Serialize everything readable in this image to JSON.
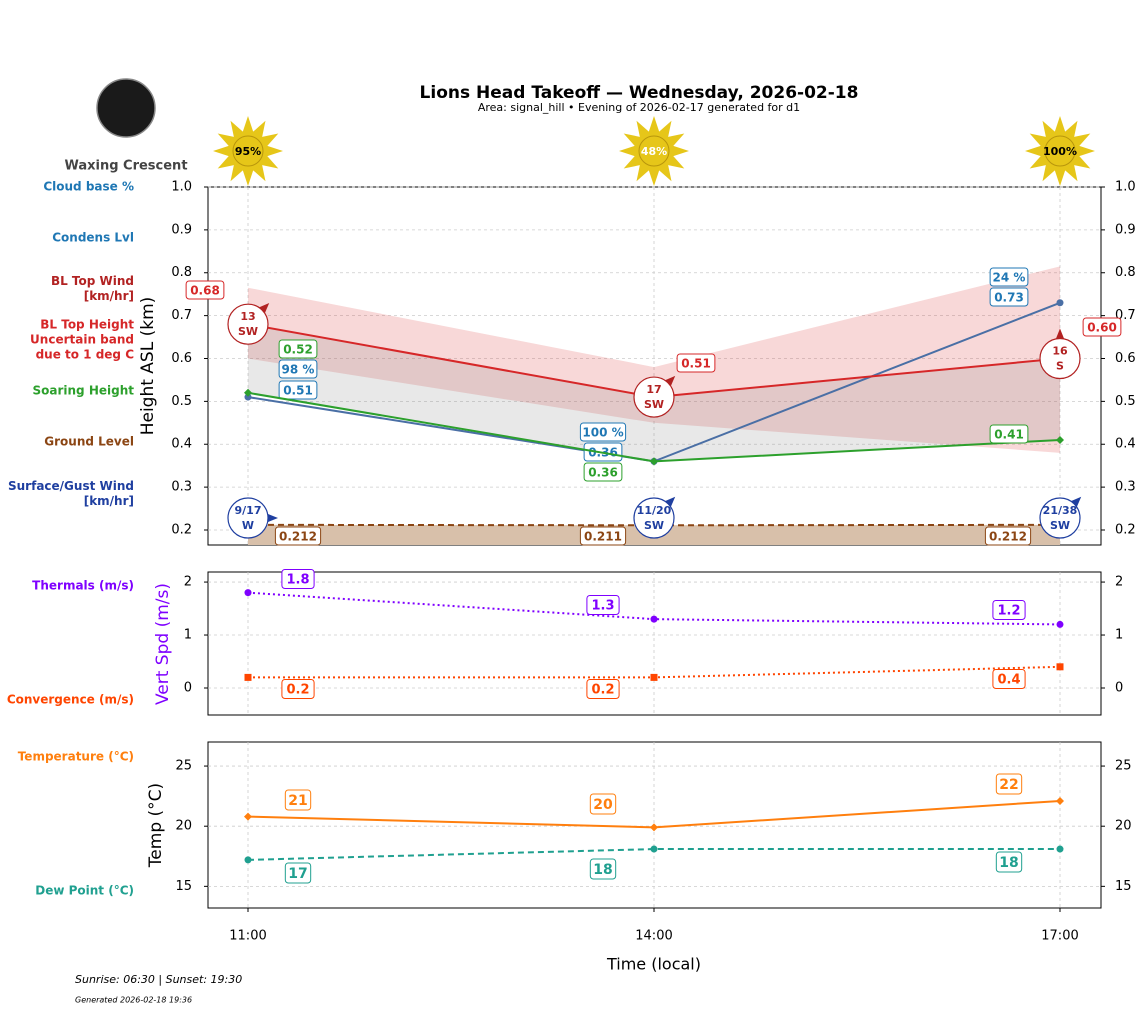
{
  "header": {
    "title": "Lions Head Takeoff — Wednesday, 2026-02-18",
    "subtitle": "Area: signal_hill • Evening of 2026-02-17 generated for d1"
  },
  "moon": {
    "phase": "Waxing Crescent"
  },
  "footer": {
    "sun": "Sunrise: 06:30 | Sunset: 19:30",
    "generated": "Generated 2026-02-18 19:36"
  },
  "chart_data": [
    {
      "type": "line",
      "y_label": "Height ASL (km)",
      "ylim": [
        0.165,
        1.0
      ],
      "yticks": [
        {
          "value": 1.0,
          "label": "1.0"
        },
        0.9,
        0.8,
        0.7,
        0.6,
        0.5,
        0.4,
        0.3,
        0.2
      ],
      "grid": true,
      "sun": {
        "values": [
          95,
          48,
          100
        ],
        "value_labels": [
          "95%",
          "48%",
          "100%"
        ],
        "color": "#e6c619"
      },
      "cloud_base": {
        "name": "Cloud base %",
        "color": "#1f77b4",
        "values": [
          98,
          100,
          24
        ],
        "value_labels": [
          "98 %",
          "100 %",
          "24 %"
        ]
      },
      "series": [
        {
          "name": "Condens Lvl",
          "color": "#1f77b4",
          "line_color": "#4a6fa5",
          "values": [
            0.51,
            0.36,
            0.73
          ],
          "line_style": "solid",
          "marker": "circle"
        },
        {
          "name": "BL Top Height\nUncertain band\ndue to 1 deg C",
          "color": "#d62728",
          "values": [
            0.68,
            0.51,
            0.6
          ],
          "value_labels": [
            "0.68",
            "0.51",
            "0.60"
          ],
          "band_low": [
            0.6,
            0.45,
            0.38
          ],
          "band_high": [
            0.765,
            0.58,
            0.815
          ],
          "line_style": "solid",
          "marker": "none"
        },
        {
          "name": "Soaring Height",
          "color": "#2ca02c",
          "values": [
            0.52,
            0.36,
            0.41
          ],
          "line_style": "solid",
          "marker": "diamond"
        },
        {
          "name": "Ground Level",
          "color": "#8b4513",
          "values": [
            0.212,
            0.211,
            0.212
          ],
          "line_style": "dashed",
          "marker": "none",
          "fill": "#d8c0aa"
        }
      ],
      "winds": [
        {
          "name": "BL Top Wind\n[km/hr]",
          "color": "#b22222",
          "speeds": [
            13,
            17,
            16
          ],
          "directions": [
            "SW",
            "SW",
            "S"
          ]
        },
        {
          "name": "Surface/Gust Wind\n[km/hr]",
          "color": "#1f3fa0",
          "speeds": [
            9,
            11,
            21
          ],
          "gusts": [
            17,
            20,
            38
          ],
          "value_labels": [
            "9/17",
            "11/20",
            "21/38"
          ],
          "directions": [
            "W",
            "SW",
            "SW"
          ]
        }
      ]
    },
    {
      "type": "line",
      "y_label": "Vert Spd (m/s)",
      "y_label_color": "#7f00ff",
      "ylim": [
        -0.51,
        2.19
      ],
      "yticks": [
        0,
        1,
        2
      ],
      "grid": true,
      "series": [
        {
          "name": "Thermals (m/s)",
          "color": "#7f00ff",
          "values": [
            1.8,
            1.3,
            1.2
          ],
          "line_style": "dotted",
          "marker": "circle"
        },
        {
          "name": "Convergence (m/s)",
          "color": "#ff4500",
          "values": [
            0.2,
            0.2,
            0.4
          ],
          "line_style": "dotted",
          "marker": "square"
        }
      ]
    },
    {
      "type": "line",
      "y_label": "Temp (°C)",
      "ylim": [
        13.2,
        27
      ],
      "yticks": [
        15,
        20,
        25
      ],
      "grid": true,
      "categories": [
        "11:00",
        "14:00",
        "17:00"
      ],
      "x_label": "Time (local)",
      "series": [
        {
          "name": "Temperature (°C)",
          "color": "#ff7f0e",
          "values": [
            20.8,
            19.9,
            22.1
          ],
          "value_labels": [
            "21",
            "20",
            "22"
          ],
          "line_style": "solid",
          "marker": "diamond"
        },
        {
          "name": "Dew Point (°C)",
          "color": "#20a090",
          "values": [
            17.2,
            18.1,
            18.1
          ],
          "value_labels": [
            "17",
            "18",
            "18"
          ],
          "line_style": "dashed",
          "marker": "circle"
        }
      ]
    }
  ]
}
